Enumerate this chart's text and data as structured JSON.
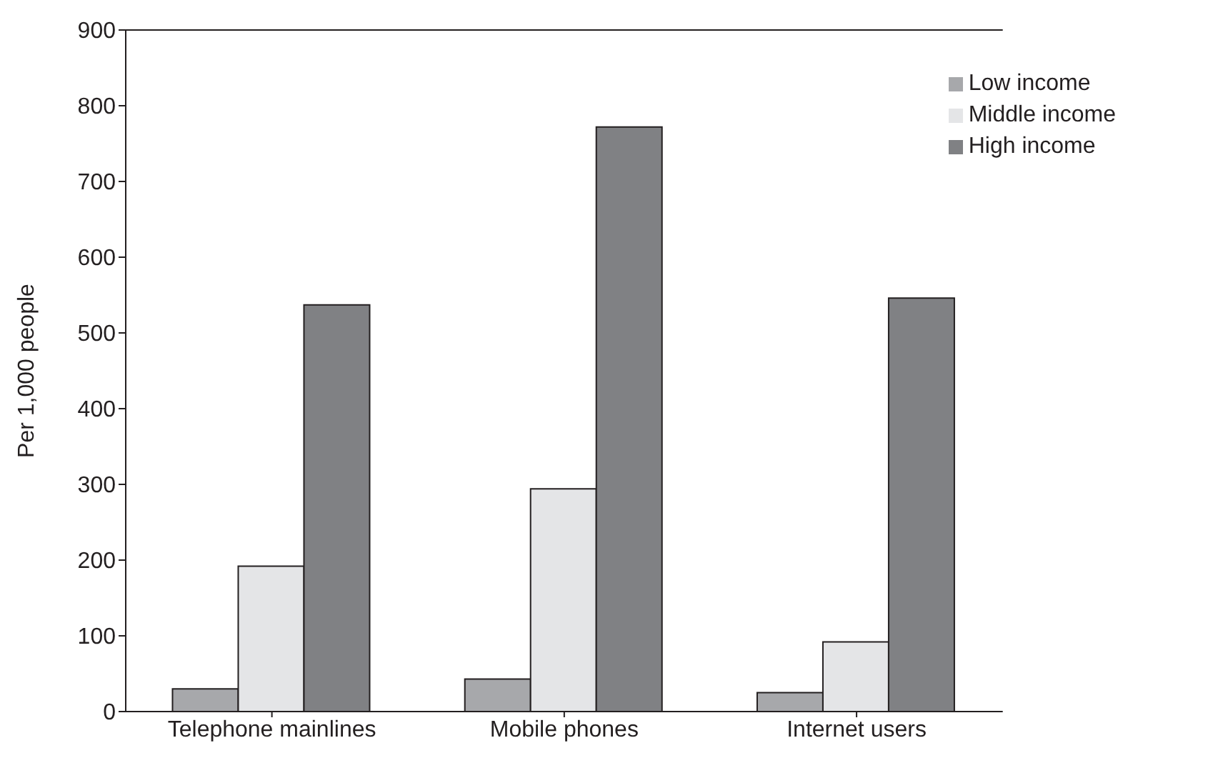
{
  "chart_data": {
    "type": "bar",
    "ylabel": "Per 1,000 people",
    "categories": [
      "Telephone mainlines",
      "Mobile phones",
      "Internet users"
    ],
    "series": [
      {
        "name": "Low income",
        "color": "#a7a8ab",
        "values": [
          30,
          43,
          25
        ]
      },
      {
        "name": "Middle income",
        "color": "#e4e5e7",
        "values": [
          192,
          294,
          92
        ]
      },
      {
        "name": "High income",
        "color": "#808184",
        "values": [
          537,
          772,
          546
        ]
      }
    ],
    "ylim": [
      0,
      900
    ],
    "yticks": [
      0,
      100,
      200,
      300,
      400,
      500,
      600,
      700,
      800,
      900
    ],
    "grid": false,
    "legend": "top right"
  }
}
